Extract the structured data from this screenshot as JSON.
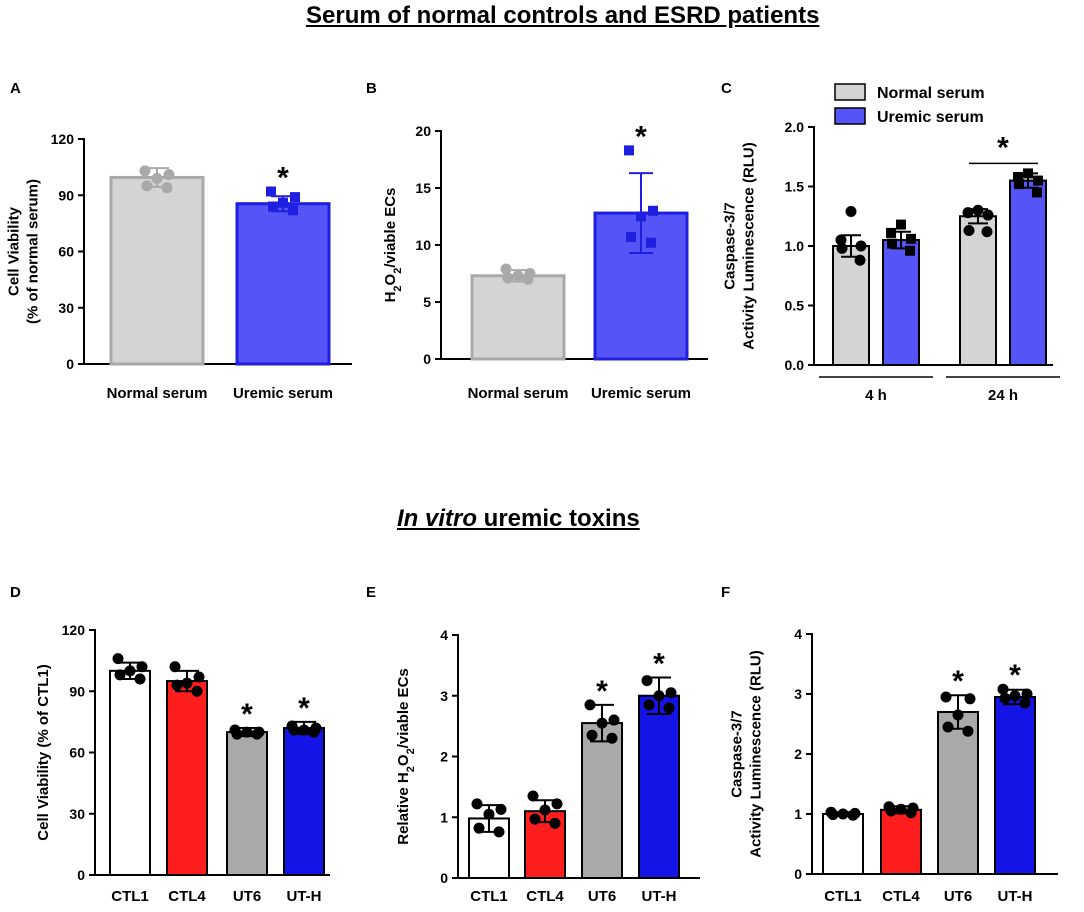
{
  "sections": [
    {
      "title": "Serum of normal controls and ESRD patients"
    },
    {
      "title_italic": "In vitro",
      "title_rest": " uremic toxins"
    }
  ],
  "legend": [
    {
      "label": "Normal serum",
      "color": "#d4d4d4"
    },
    {
      "label": "Uremic serum",
      "color": "#5454f7"
    }
  ],
  "chart_data": [
    {
      "panel": "A",
      "type": "bar",
      "categories": [
        "Normal serum",
        "Uremic serum"
      ],
      "values": [
        99.5,
        85.5
      ],
      "errors": [
        5,
        4
      ],
      "colors": [
        "#d4d4d4",
        "#5454f7"
      ],
      "edge_colors": [
        "#a9a9a9",
        "#1f1fe0"
      ],
      "points": [
        [
          103,
          101,
          99,
          95,
          94
        ],
        [
          92,
          89,
          86,
          84,
          82
        ]
      ],
      "point_colors": [
        "#a9a9a9",
        "#1f1fe0"
      ],
      "point_shapes": [
        "circle",
        "square"
      ],
      "ylabel_lines": [
        "Cell Viability",
        "(% of normal serum)"
      ],
      "ylim": [
        0,
        120
      ],
      "yticks": [
        0,
        30,
        60,
        90,
        120
      ],
      "significant": [
        false,
        true
      ],
      "star": "*"
    },
    {
      "panel": "B",
      "type": "bar",
      "categories": [
        "Normal serum",
        "Uremic serum"
      ],
      "values": [
        7.3,
        12.8
      ],
      "errors": [
        0.5,
        3.5
      ],
      "colors": [
        "#d4d4d4",
        "#5454f7"
      ],
      "edge_colors": [
        "#a9a9a9",
        "#1f1fe0"
      ],
      "points": [
        [
          7.9,
          7.5,
          7.3,
          7.1,
          7.0
        ],
        [
          18.3,
          13.0,
          12.5,
          10.7,
          10.2
        ]
      ],
      "point_colors": [
        "#a9a9a9",
        "#1f1fe0"
      ],
      "point_shapes": [
        "circle",
        "square"
      ],
      "ylabel_parts": [
        "H",
        "2",
        "O",
        "2",
        "/viable ECs"
      ],
      "ylim": [
        0,
        20
      ],
      "yticks": [
        0,
        5,
        10,
        15,
        20
      ],
      "significant": [
        false,
        true
      ],
      "star": "*"
    },
    {
      "panel": "C",
      "type": "bar",
      "groups": [
        "4 h",
        "24 h"
      ],
      "series": [
        {
          "name": "Normal serum",
          "values": [
            1.0,
            1.25
          ],
          "errors": [
            0.09,
            0.06
          ],
          "color": "#d4d4d4",
          "points": [
            [
              1.29,
              1.05,
              1.0,
              0.98,
              0.88
            ],
            [
              1.3,
              1.28,
              1.26,
              1.13,
              1.12
            ]
          ],
          "point_shape": "circle"
        },
        {
          "name": "Uremic serum",
          "values": [
            1.05,
            1.55
          ],
          "errors": [
            0.07,
            0.06
          ],
          "color": "#5454f7",
          "points": [
            [
              1.18,
              1.11,
              1.06,
              1.02,
              0.96
            ],
            [
              1.61,
              1.58,
              1.55,
              1.52,
              1.45
            ]
          ],
          "point_shape": "square"
        }
      ],
      "ylabel_lines": [
        "Caspase-3/7",
        "Activity Luminescence (RLU)"
      ],
      "ylim": [
        0,
        2.0
      ],
      "yticks": [
        "0.0",
        "0.5",
        "1.0",
        "1.5",
        "2.0"
      ],
      "significance": "*"
    },
    {
      "panel": "D",
      "type": "bar",
      "categories": [
        "CTL1",
        "CTL4",
        "UT6",
        "UT-H"
      ],
      "values": [
        100,
        95,
        70,
        72
      ],
      "errors": [
        4,
        5,
        2,
        3
      ],
      "colors": [
        "#ffffff",
        "#ff1e1e",
        "#a9a9a9",
        "#1414e6"
      ],
      "points": [
        [
          106,
          102,
          100,
          98,
          96
        ],
        [
          102,
          97,
          94,
          93,
          90
        ],
        [
          71,
          70,
          70,
          69,
          69
        ],
        [
          73,
          72,
          71,
          71,
          70
        ]
      ],
      "ylabel_lines": [
        "Cell Viability (% of CTL1)"
      ],
      "ylim": [
        0,
        120
      ],
      "yticks": [
        0,
        30,
        60,
        90,
        120
      ],
      "significant": [
        false,
        false,
        true,
        true
      ],
      "star": "*"
    },
    {
      "panel": "E",
      "type": "bar",
      "categories": [
        "CTL1",
        "CTL4",
        "UT6",
        "UT-H"
      ],
      "values": [
        0.98,
        1.1,
        2.55,
        3.0
      ],
      "errors": [
        0.22,
        0.18,
        0.3,
        0.3
      ],
      "colors": [
        "#ffffff",
        "#ff1e1e",
        "#a9a9a9",
        "#1414e6"
      ],
      "points": [
        [
          1.22,
          1.13,
          1.05,
          0.82,
          0.76
        ],
        [
          1.35,
          1.22,
          1.12,
          0.97,
          0.9
        ],
        [
          2.85,
          2.6,
          2.55,
          2.35,
          2.3
        ],
        [
          3.25,
          3.05,
          3.0,
          2.85,
          2.8
        ]
      ],
      "ylabel_parts": [
        "Relative H",
        "2",
        "O",
        "2",
        "/viable ECs"
      ],
      "ylim": [
        0,
        4
      ],
      "yticks": [
        0,
        1,
        2,
        3,
        4
      ],
      "significant": [
        false,
        false,
        true,
        true
      ],
      "star": "*"
    },
    {
      "panel": "F",
      "type": "bar",
      "categories": [
        "CTL1",
        "CTL4",
        "UT6",
        "UT-H"
      ],
      "values": [
        1.0,
        1.07,
        2.7,
        2.95
      ],
      "errors": [
        0.03,
        0.06,
        0.28,
        0.12
      ],
      "colors": [
        "#ffffff",
        "#ff1e1e",
        "#a9a9a9",
        "#1414e6"
      ],
      "points": [
        [
          1.03,
          1.01,
          1.0,
          0.99,
          0.98
        ],
        [
          1.12,
          1.1,
          1.08,
          1.05,
          1.02
        ],
        [
          2.95,
          2.92,
          2.65,
          2.45,
          2.38
        ],
        [
          3.08,
          3.0,
          2.97,
          2.93,
          2.85
        ]
      ],
      "ylabel_lines": [
        "Caspase-3/7",
        "Activity Luminescence (RLU)"
      ],
      "ylim": [
        0,
        4
      ],
      "yticks": [
        0,
        1,
        2,
        3,
        4
      ],
      "significant": [
        false,
        false,
        true,
        true
      ],
      "star": "*"
    }
  ]
}
